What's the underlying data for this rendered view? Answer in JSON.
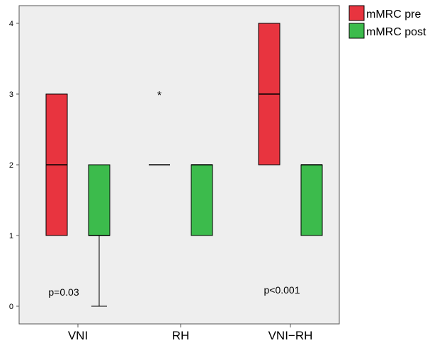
{
  "chart_data": {
    "type": "boxplot",
    "categories": [
      "VNI",
      "RH",
      "VNI−RH"
    ],
    "ylim": [
      0,
      4
    ],
    "yticks": [
      "0",
      "1",
      "2",
      "3",
      "4"
    ],
    "grid": false,
    "legend_position": "top-right",
    "series": [
      {
        "name": "mMRC pre",
        "color": "#e8343f",
        "boxes": [
          {
            "min": 1,
            "q1": 1,
            "median": 2,
            "q3": 3,
            "max": 3,
            "outliers": []
          },
          {
            "min": 2,
            "q1": 2,
            "median": 2,
            "q3": 2,
            "max": 2,
            "outliers": [
              3
            ]
          },
          {
            "min": 2,
            "q1": 2,
            "median": 3,
            "q3": 4,
            "max": 4,
            "outliers": []
          }
        ]
      },
      {
        "name": "mMRC post",
        "color": "#3cbb4c",
        "boxes": [
          {
            "min": 0,
            "q1": 1,
            "median": 1,
            "q3": 2,
            "max": 2,
            "outliers": []
          },
          {
            "min": 1,
            "q1": 1,
            "median": 2,
            "q3": 2,
            "max": 2,
            "outliers": []
          },
          {
            "min": 1,
            "q1": 1,
            "median": 2,
            "q3": 2,
            "max": 2,
            "outliers": []
          }
        ]
      }
    ],
    "annotations": [
      {
        "text": "p=0.03",
        "category": 0
      },
      {
        "text": "p<0.001",
        "category": 2
      }
    ],
    "outlier_symbol": "*"
  }
}
